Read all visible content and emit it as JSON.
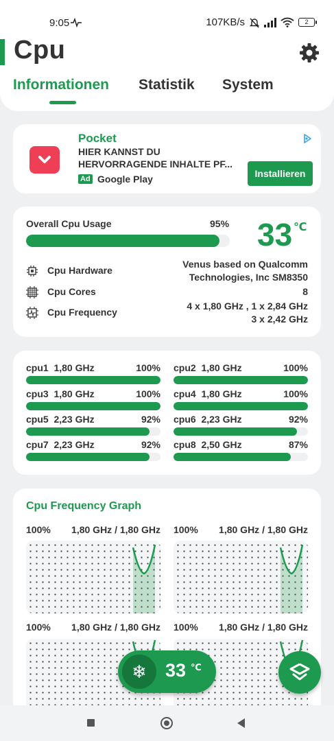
{
  "status": {
    "time": "9:05",
    "net_speed": "107KB/s",
    "battery": "2"
  },
  "app": {
    "title": "Cpu",
    "accent_color": "#1e9a50"
  },
  "tabs": [
    {
      "label": "Informationen",
      "active": true
    },
    {
      "label": "Statistik",
      "active": false
    },
    {
      "label": "System",
      "active": false
    }
  ],
  "ad": {
    "title": "Pocket",
    "description": "HIER KANNST DU HERVORRAGENDE INHALTE PF...",
    "badge": "Ad",
    "store": "Google Play",
    "button": "Installieren"
  },
  "usage": {
    "label": "Overall Cpu Usage",
    "percent_text": "95%",
    "percent": 95,
    "temperature": "33",
    "temp_unit": "℃"
  },
  "info": [
    {
      "label": "Cpu Hardware",
      "icon": "chip-icon",
      "value": "Venus based on Qualcomm\nTechnologies, Inc SM8350"
    },
    {
      "label": "Cpu Cores",
      "icon": "cores-icon",
      "value": "8"
    },
    {
      "label": "Cpu Frequency",
      "icon": "frequency-icon",
      "value": "4 x 1,80 GHz , 1 x 2,84 GHz\n3 x 2,42 GHz"
    }
  ],
  "cores": [
    {
      "name": "cpu1  1,80 GHz",
      "percent_text": "100%",
      "percent": 100
    },
    {
      "name": "cpu2  1,80 GHz",
      "percent_text": "100%",
      "percent": 100
    },
    {
      "name": "cpu3  1,80 GHz",
      "percent_text": "100%",
      "percent": 100
    },
    {
      "name": "cpu4  1,80 GHz",
      "percent_text": "100%",
      "percent": 100
    },
    {
      "name": "cpu5  2,23 GHz",
      "percent_text": "92%",
      "percent": 92
    },
    {
      "name": "cpu6  2,23 GHz",
      "percent_text": "92%",
      "percent": 92
    },
    {
      "name": "cpu7  2,23 GHz",
      "percent_text": "92%",
      "percent": 92
    },
    {
      "name": "cpu8  2,50 GHz",
      "percent_text": "87%",
      "percent": 87
    }
  ],
  "graph": {
    "title": "Cpu Frequency Graph",
    "panels": [
      {
        "percent": "100%",
        "freq": "1,80 GHz / 1,80 GHz"
      },
      {
        "percent": "100%",
        "freq": "1,80 GHz / 1,80 GHz"
      },
      {
        "percent": "100%",
        "freq": "1,80 GHz / 1,80 GHz"
      },
      {
        "percent": "100%",
        "freq": "1,80 GHz / 1,80 GHz"
      }
    ]
  },
  "fab": {
    "temperature": "33",
    "temp_unit": "℃",
    "icon": "snowflake-icon"
  }
}
